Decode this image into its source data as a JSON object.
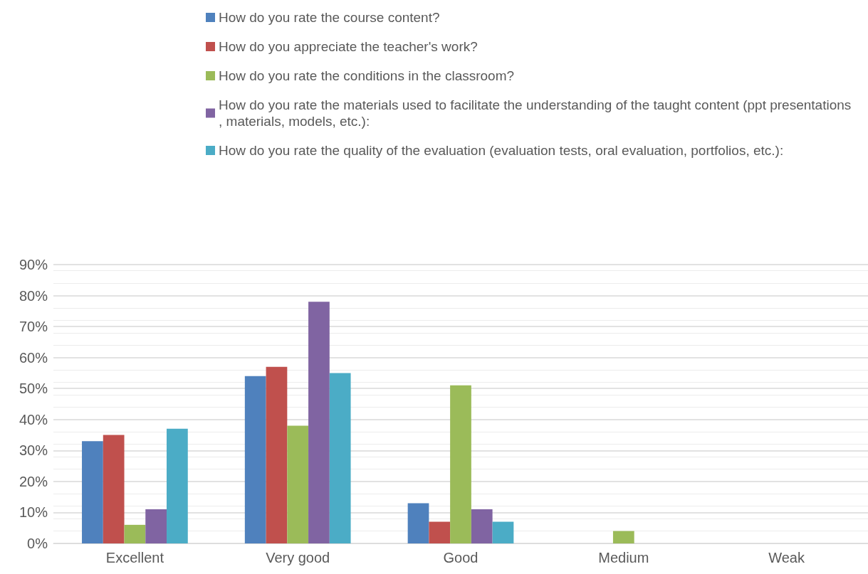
{
  "chart_data": {
    "type": "bar",
    "categories": [
      "Excellent",
      "Very good",
      "Good",
      "Medium",
      "Weak"
    ],
    "series": [
      {
        "name": "How do you rate the course content?",
        "color": "#4f81bd",
        "values": [
          33,
          54,
          13,
          0,
          0
        ]
      },
      {
        "name": "How do you appreciate the teacher's work?",
        "color": "#c0504d",
        "values": [
          35,
          57,
          7,
          0,
          0
        ]
      },
      {
        "name": "How do you rate the conditions in the classroom?",
        "color": "#9bbb59",
        "values": [
          6,
          38,
          51,
          4,
          0
        ]
      },
      {
        "name": "How do you rate the materials used to facilitate the understanding of the taught content (ppt presentations, materials, models, etc.):",
        "color": "#8064a2",
        "values": [
          11,
          78,
          11,
          0,
          0
        ]
      },
      {
        "name": "How do you rate the quality of the evaluation (evaluation tests, oral evaluation, portfolios, etc.):",
        "color": "#4bacc6",
        "values": [
          37,
          55,
          7,
          0,
          0
        ]
      }
    ],
    "ylim": [
      0,
      90
    ],
    "yticks": [
      {
        "value": 0,
        "label": "0%"
      },
      {
        "value": 10,
        "label": "10%"
      },
      {
        "value": 20,
        "label": "20%"
      },
      {
        "value": 30,
        "label": "30%"
      },
      {
        "value": 40,
        "label": "40%"
      },
      {
        "value": 50,
        "label": "50%"
      },
      {
        "value": 60,
        "label": "60%"
      },
      {
        "value": 70,
        "label": "70%"
      },
      {
        "value": 80,
        "label": "80%"
      },
      {
        "value": 90,
        "label": "90%"
      }
    ],
    "grid": true,
    "legend": "top"
  }
}
